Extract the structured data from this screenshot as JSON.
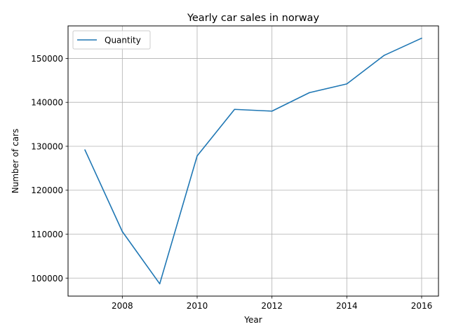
{
  "chart_data": {
    "type": "line",
    "title": "Yearly car sales in norway",
    "xlabel": "Year",
    "ylabel": "Number of cars",
    "x": [
      2007,
      2008,
      2009,
      2010,
      2011,
      2012,
      2013,
      2014,
      2015,
      2016
    ],
    "series": [
      {
        "name": "Quantity",
        "color": "#1f77b4",
        "values": [
          129200,
          110600,
          98700,
          127800,
          138400,
          138000,
          142200,
          144200,
          150700,
          154600
        ]
      }
    ],
    "xlim": [
      2006.55,
      2016.45
    ],
    "ylim": [
      95900,
      157400
    ],
    "xticks": [
      2008,
      2010,
      2012,
      2014,
      2016
    ],
    "yticks": [
      100000,
      110000,
      120000,
      130000,
      140000,
      150000
    ],
    "grid": true,
    "legend_position": "top-left"
  }
}
